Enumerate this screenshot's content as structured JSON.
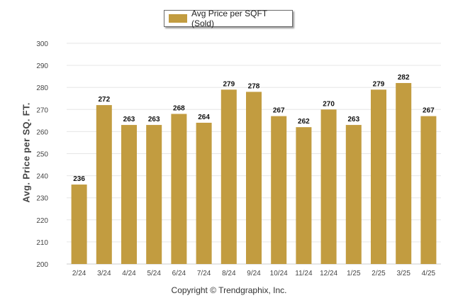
{
  "chart_data": {
    "type": "bar",
    "legend": "Avg Price per SQFT (Sold)",
    "legend_position": "top",
    "ylabel": "Avg. Price per SQ. FT.",
    "xlabel": "",
    "ylim": [
      200,
      300
    ],
    "yticks": [
      200,
      210,
      220,
      230,
      240,
      250,
      260,
      270,
      280,
      290,
      300
    ],
    "grid": true,
    "bar_color": "#C29C40",
    "categories": [
      "2/24",
      "3/24",
      "4/24",
      "5/24",
      "6/24",
      "7/24",
      "8/24",
      "9/24",
      "10/24",
      "11/24",
      "12/24",
      "1/25",
      "2/25",
      "3/25",
      "4/25"
    ],
    "values": [
      236,
      272,
      263,
      263,
      268,
      264,
      279,
      278,
      267,
      262,
      270,
      263,
      279,
      282,
      267
    ]
  },
  "footer": {
    "copyright": "Copyright © Trendgraphix, Inc."
  }
}
